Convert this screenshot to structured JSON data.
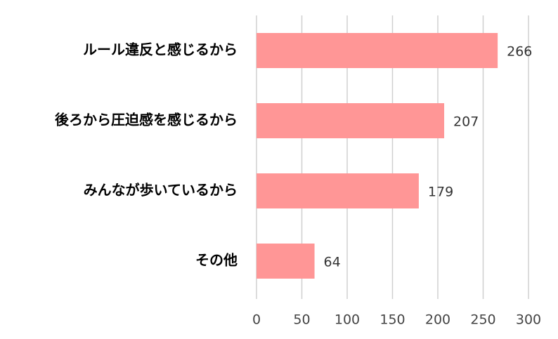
{
  "chart_data": {
    "type": "bar",
    "orientation": "horizontal",
    "categories": [
      "ルール違反と感じるから",
      "後ろから圧迫感を感じるから",
      "みんなが歩いているから",
      "その他"
    ],
    "values": [
      266,
      207,
      179,
      64
    ],
    "color": "#ff9696",
    "xlim": [
      0,
      300
    ],
    "xticks": [
      0,
      50,
      100,
      150,
      200,
      250,
      300
    ],
    "grid": true
  }
}
